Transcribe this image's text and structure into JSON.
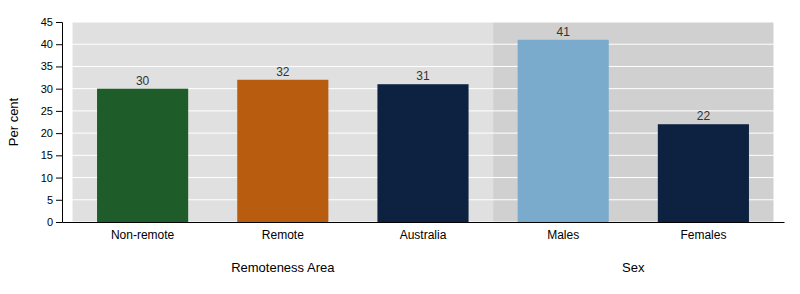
{
  "chart_data": {
    "type": "bar",
    "categories": [
      "Non-remote",
      "Remote",
      "Australia",
      "Males",
      "Females"
    ],
    "values": [
      30,
      32,
      31,
      41,
      22
    ],
    "colors": [
      "#1e5c2a",
      "#b85c10",
      "#0d2240",
      "#7aaacc",
      "#0d2240"
    ],
    "ylabel": "Per cent",
    "ylim": [
      0,
      45
    ],
    "yticks": [
      0,
      5,
      10,
      15,
      20,
      25,
      30,
      35,
      40,
      45
    ],
    "grid": true,
    "data_labels": true,
    "annotations": [
      {
        "text": "Remoteness Area",
        "categories": [
          "Non-remote",
          "Remote",
          "Australia"
        ],
        "color": "#e0e0e0"
      },
      {
        "text": "Sex",
        "categories": [
          "Males",
          "Females"
        ],
        "color": "#d0d0d0"
      }
    ]
  }
}
